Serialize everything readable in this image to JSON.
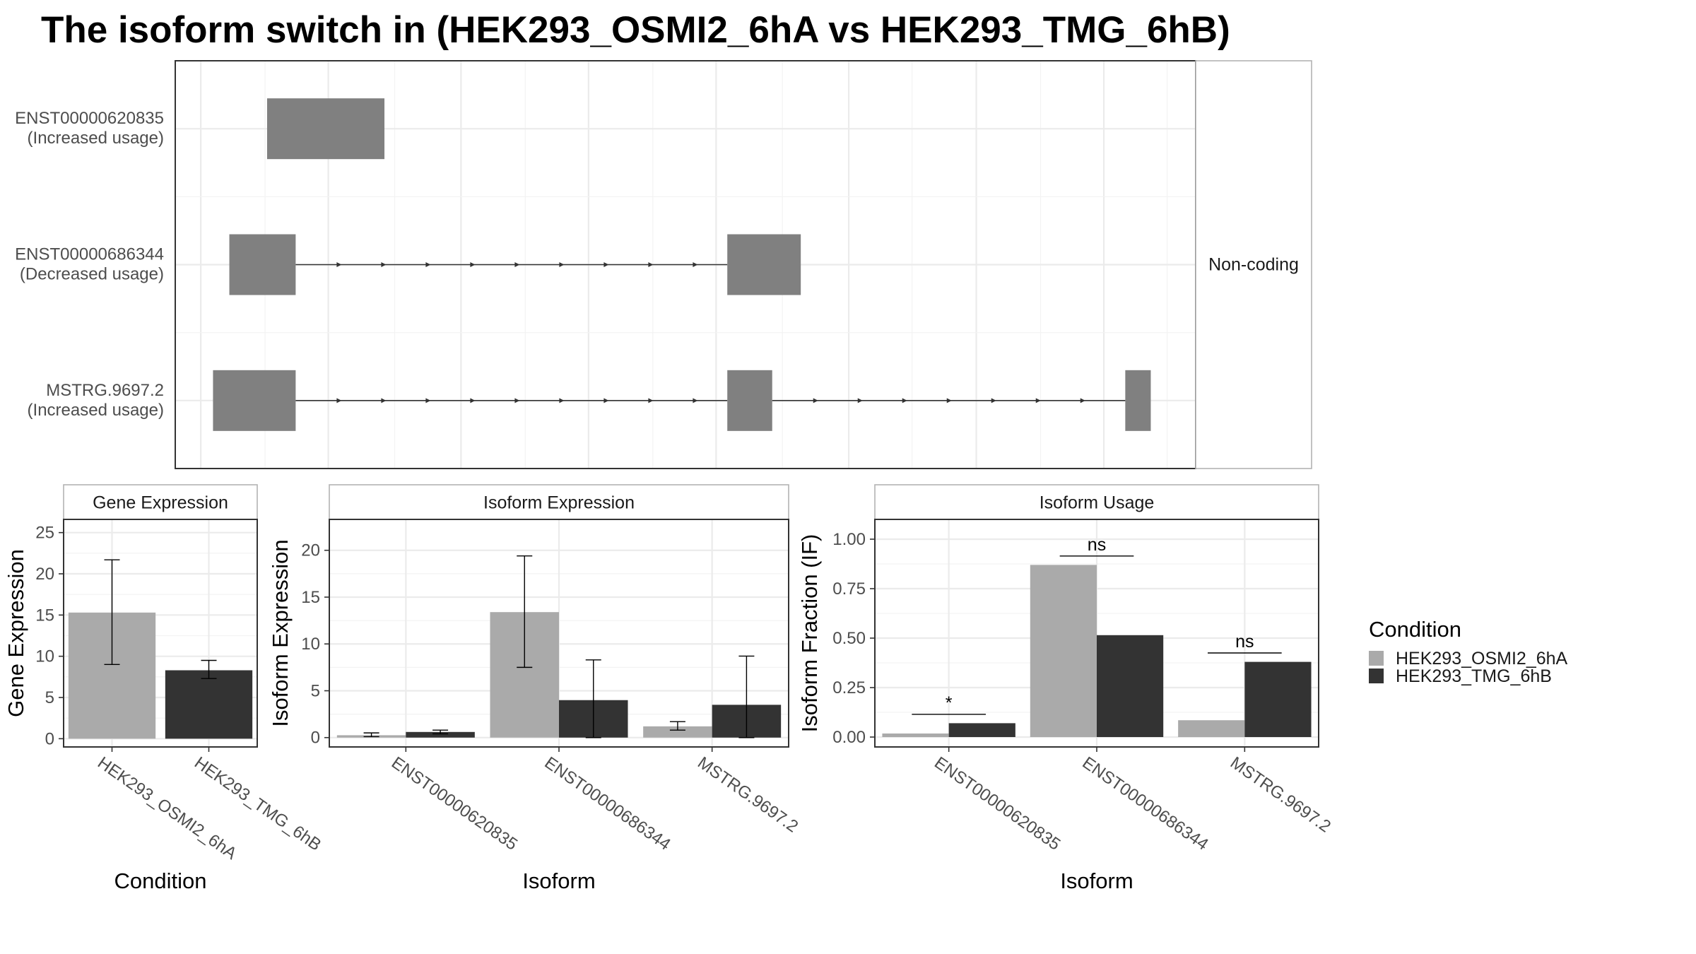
{
  "title": "The isoform switch in  (HEK293_OSMI2_6hA vs HEK293_TMG_6hB)",
  "colors": {
    "condition_a": "#aaaaaa",
    "condition_b": "#333333",
    "exon": "#808080",
    "intron": "#333333",
    "frame": "#333333",
    "strip_bg": "#ffffff"
  },
  "chart_data": [
    {
      "type": "gene-structure",
      "facet_label": "Non-coding",
      "transcripts": [
        {
          "name": "ENST00000620835",
          "label": "(Increased usage)",
          "exons": [
            [
              0.09,
              0.205
            ]
          ]
        },
        {
          "name": "ENST00000686344",
          "label": "(Decreased usage)",
          "exons": [
            [
              0.053,
              0.118
            ],
            [
              0.541,
              0.613
            ]
          ]
        },
        {
          "name": "MSTRG.9697.2",
          "label": "(Increased usage)",
          "exons": [
            [
              0.037,
              0.118
            ],
            [
              0.541,
              0.585
            ],
            [
              0.931,
              0.956
            ]
          ]
        }
      ]
    },
    {
      "type": "bar",
      "panel_title": "Gene Expression",
      "xlabel": "Condition",
      "ylabel": "Gene Expression",
      "ylim": [
        -1,
        26.6
      ],
      "yticks": [
        0,
        5,
        10,
        15,
        20,
        25
      ],
      "categories": [
        "HEK293_OSMI2_6hA",
        "HEK293_TMG_6hB"
      ],
      "bars": [
        {
          "category": "HEK293_OSMI2_6hA",
          "condition": "HEK293_OSMI2_6hA",
          "value": 15.3,
          "err_low": 9.0,
          "err_high": 21.7
        },
        {
          "category": "HEK293_TMG_6hB",
          "condition": "HEK293_TMG_6hB",
          "value": 8.3,
          "err_low": 7.3,
          "err_high": 9.5
        }
      ]
    },
    {
      "type": "bar",
      "panel_title": "Isoform Expression",
      "xlabel": "Isoform",
      "ylabel": "Isoform Expression",
      "ylim": [
        -1,
        23.3
      ],
      "yticks": [
        0,
        5,
        10,
        15,
        20
      ],
      "categories": [
        "ENST00000620835",
        "ENST00000686344",
        "MSTRG.9697.2"
      ],
      "series": [
        {
          "name": "HEK293_OSMI2_6hA",
          "values": [
            0.25,
            13.4,
            1.2
          ],
          "err_low": [
            0.1,
            7.5,
            0.8
          ],
          "err_high": [
            0.5,
            19.4,
            1.7
          ]
        },
        {
          "name": "HEK293_TMG_6hB",
          "values": [
            0.6,
            4.0,
            3.5
          ],
          "err_low": [
            0.4,
            0.0,
            0.0
          ],
          "err_high": [
            0.8,
            8.3,
            8.7
          ]
        }
      ]
    },
    {
      "type": "bar",
      "panel_title": "Isoform Usage",
      "xlabel": "Isoform",
      "ylabel": "Isoform Fraction (IF)",
      "ylim": [
        -0.05,
        1.1
      ],
      "yticks": [
        0.0,
        0.25,
        0.5,
        0.75,
        1.0
      ],
      "ytick_labels": [
        "0.00",
        "0.25",
        "0.50",
        "0.75",
        "1.00"
      ],
      "categories": [
        "ENST00000620835",
        "ENST00000686344",
        "MSTRG.9697.2"
      ],
      "series": [
        {
          "name": "HEK293_OSMI2_6hA",
          "values": [
            0.018,
            0.87,
            0.085
          ]
        },
        {
          "name": "HEK293_TMG_6hB",
          "values": [
            0.07,
            0.515,
            0.38
          ]
        }
      ],
      "significance": [
        {
          "category": "ENST00000620835",
          "label": "*",
          "y": 0.115
        },
        {
          "category": "ENST00000686344",
          "label": "ns",
          "y": 0.915
        },
        {
          "category": "MSTRG.9697.2",
          "label": "ns",
          "y": 0.425
        }
      ]
    }
  ],
  "legend": {
    "title": "Condition",
    "placement": "right",
    "entries": [
      "HEK293_OSMI2_6hA",
      "HEK293_TMG_6hB"
    ]
  }
}
